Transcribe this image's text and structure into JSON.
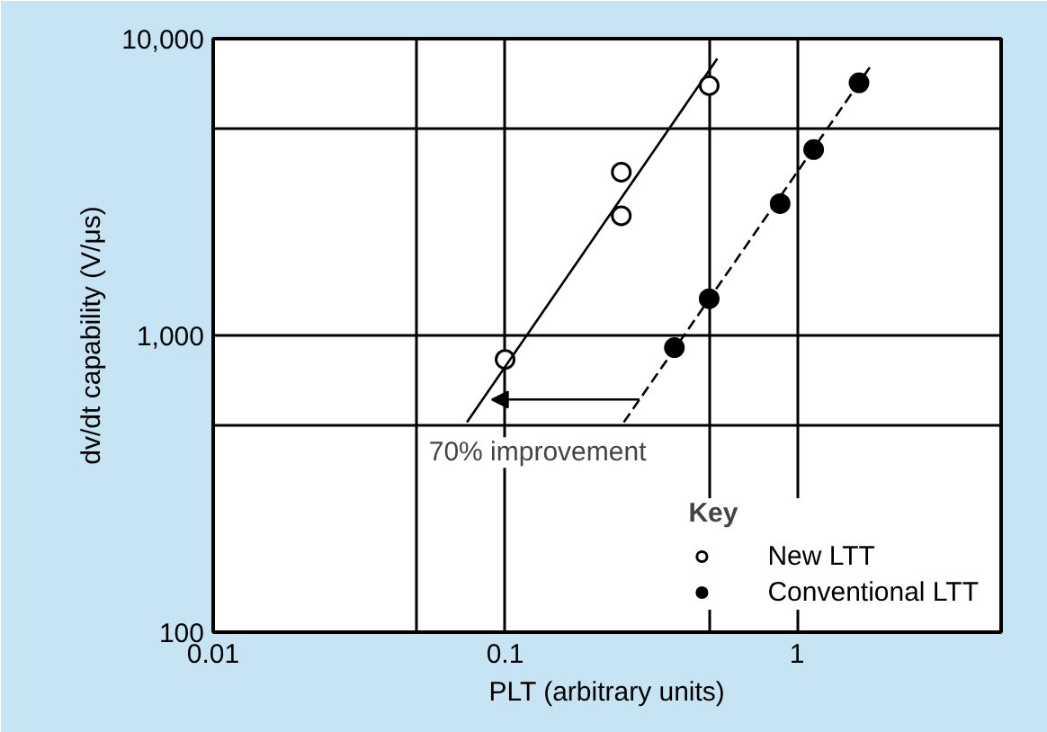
{
  "chart_data": {
    "type": "scatter",
    "xlabel": "PLT (arbitrary units)",
    "ylabel": "dv/dt capability (V/μs)",
    "legend_title": "Key",
    "log": "xy",
    "xlim": [
      0.01,
      5
    ],
    "ylim": [
      100,
      10000
    ],
    "xticks": [
      0.01,
      {
        "value": 0.05,
        "label": null
      },
      0.1,
      {
        "value": 0.5,
        "label": null
      },
      1
    ],
    "yticks": [
      100,
      {
        "value": 500,
        "label": null
      },
      {
        "value": 1000,
        "label": "1,000"
      },
      {
        "value": 5000,
        "label": null
      },
      {
        "value": 10000,
        "label": "10,000"
      }
    ],
    "grid": true,
    "legend": "bottom right",
    "series": [
      {
        "name": "New LTT",
        "color": "#ffffff",
        "marker": "circle",
        "x": [
          0.1,
          0.25,
          0.25,
          0.5
        ],
        "values": [
          830,
          2530,
          3550,
          6950
        ]
      },
      {
        "name": "Conventional LTT",
        "color": "#000000",
        "marker": "circle",
        "x": [
          0.38,
          0.5,
          0.875,
          1.14,
          1.63
        ],
        "values": [
          910,
          1330,
          2780,
          4230,
          7100
        ]
      },
      {
        "type": "line",
        "color": "#000000",
        "line_style": "solid",
        "x": [
          0.074,
          0.533
        ],
        "values": [
          510,
          8560
        ]
      },
      {
        "type": "line",
        "color": "#000000",
        "line_style": "dashed",
        "x": [
          0.255,
          1.8
        ],
        "values": [
          510,
          8170
        ]
      }
    ],
    "annotations": [
      {
        "text": "70% improvement",
        "x": 0.09,
        "y": 608
      }
    ]
  }
}
